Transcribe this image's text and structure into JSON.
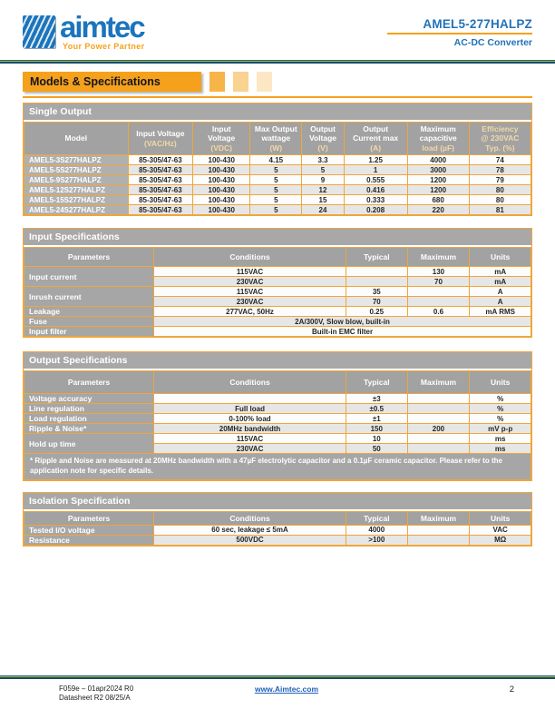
{
  "colors": {
    "accent_orange": "#F5A11C",
    "brand_blue": "#1C75BC",
    "header_gray": "#A6A6A6"
  },
  "header": {
    "brand": "aimtec",
    "tagline": "Your Power Partner",
    "product": "AMEL5-277HALPZ",
    "subtitle": "AC-DC Converter"
  },
  "section_title": "Models & Specifications",
  "tables": {
    "single_output": {
      "title": "Single Output",
      "columns": [
        {
          "label": "Model",
          "unit": ""
        },
        {
          "label": "Input Voltage",
          "unit": "(VAC/Hz)"
        },
        {
          "label": "Input\nVoltage",
          "unit": "(VDC)"
        },
        {
          "label": "Max Output\nwattage",
          "unit": "(W)"
        },
        {
          "label": "Output\nVoltage",
          "unit": "(V)"
        },
        {
          "label": "Output\nCurrent max",
          "unit": "(A)"
        },
        {
          "label": "Maximum\ncapacitive",
          "unit": "load (µF)"
        },
        {
          "label": "Efficiency\n@ 230VAC",
          "unit": "Typ. (%)",
          "tint": true
        }
      ],
      "rows": [
        [
          "AMEL5-3S277HALPZ",
          "85-305/47-63",
          "100-430",
          "4.15",
          "3.3",
          "1.25",
          "4000",
          "74"
        ],
        [
          "AMEL5-5S277HALPZ",
          "85-305/47-63",
          "100-430",
          "5",
          "5",
          "1",
          "3000",
          "78"
        ],
        [
          "AMEL5-9S277HALPZ",
          "85-305/47-63",
          "100-430",
          "5",
          "9",
          "0.555",
          "1200",
          "79"
        ],
        [
          "AMEL5-12S277HALPZ",
          "85-305/47-63",
          "100-430",
          "5",
          "12",
          "0.416",
          "1200",
          "80"
        ],
        [
          "AMEL5-15S277HALPZ",
          "85-305/47-63",
          "100-430",
          "5",
          "15",
          "0.333",
          "680",
          "80"
        ],
        [
          "AMEL5-24S277HALPZ",
          "85-305/47-63",
          "100-430",
          "5",
          "24",
          "0.208",
          "220",
          "81"
        ]
      ]
    },
    "input_specs": {
      "title": "Input Specifications",
      "columns": [
        "Parameters",
        "Conditions",
        "Typical",
        "Maximum",
        "Units"
      ],
      "rows": [
        [
          {
            "t": "Input current",
            "param": true,
            "rowspan": 2
          },
          "115VAC",
          "",
          "130",
          "mA"
        ],
        [
          "230VAC",
          "",
          "70",
          "mA"
        ],
        [
          {
            "t": "Inrush current",
            "param": true,
            "rowspan": 2
          },
          "115VAC",
          "35",
          "",
          "A"
        ],
        [
          "230VAC",
          "70",
          "",
          "A"
        ],
        [
          {
            "t": "Leakage",
            "param": true
          },
          "277VAC, 50Hz",
          "0.25",
          "0.6",
          "mA RMS"
        ],
        [
          {
            "t": "Fuse",
            "param": true
          },
          {
            "t": "2A/300V, Slow blow, built-in",
            "colspan": 4
          }
        ],
        [
          {
            "t": "Input filter",
            "param": true
          },
          {
            "t": "Built-in EMC filter",
            "colspan": 4
          }
        ]
      ]
    },
    "output_specs": {
      "title": "Output Specifications",
      "columns": [
        "Parameters",
        "Conditions",
        "Typical",
        "Maximum",
        "Units"
      ],
      "rows": [
        [
          {
            "t": "Voltage accuracy",
            "param": true
          },
          "",
          "±3",
          "",
          "%"
        ],
        [
          {
            "t": "Line regulation",
            "param": true
          },
          "Full load",
          "±0.5",
          "",
          "%"
        ],
        [
          {
            "t": "Load regulation",
            "param": true
          },
          "0-100% load",
          "±1",
          "",
          "%"
        ],
        [
          {
            "t": "Ripple & Noise*",
            "param": true
          },
          "20MHz bandwidth",
          "150",
          "200",
          "mV p-p"
        ],
        [
          {
            "t": "Hold up time",
            "param": true,
            "rowspan": 2
          },
          "115VAC",
          "10",
          "",
          "ms"
        ],
        [
          "230VAC",
          "50",
          "",
          "ms"
        ]
      ],
      "footnote": "* Ripple and Noise are measured at 20MHz bandwidth with a 47µF electrolytic capacitor and a 0.1µF ceramic capacitor. Please refer to the application note for specific details."
    },
    "isolation_specs": {
      "title": "Isolation Specification",
      "columns": [
        "Parameters",
        "Conditions",
        "Typical",
        "Maximum",
        "Units"
      ],
      "rows": [
        [
          {
            "t": "Tested I/O voltage",
            "param": true
          },
          "60 sec, leakage ≤ 5mA",
          "4000",
          "",
          "VAC"
        ],
        [
          {
            "t": "Resistance",
            "param": true
          },
          "500VDC",
          ">100",
          "",
          "MΩ"
        ]
      ]
    }
  },
  "footer": {
    "doc_line1": "F059e – 01apr2024 R0",
    "doc_line2": "Datasheet R2 08/25/A",
    "link": "www.Aimtec.com",
    "page": "2"
  }
}
